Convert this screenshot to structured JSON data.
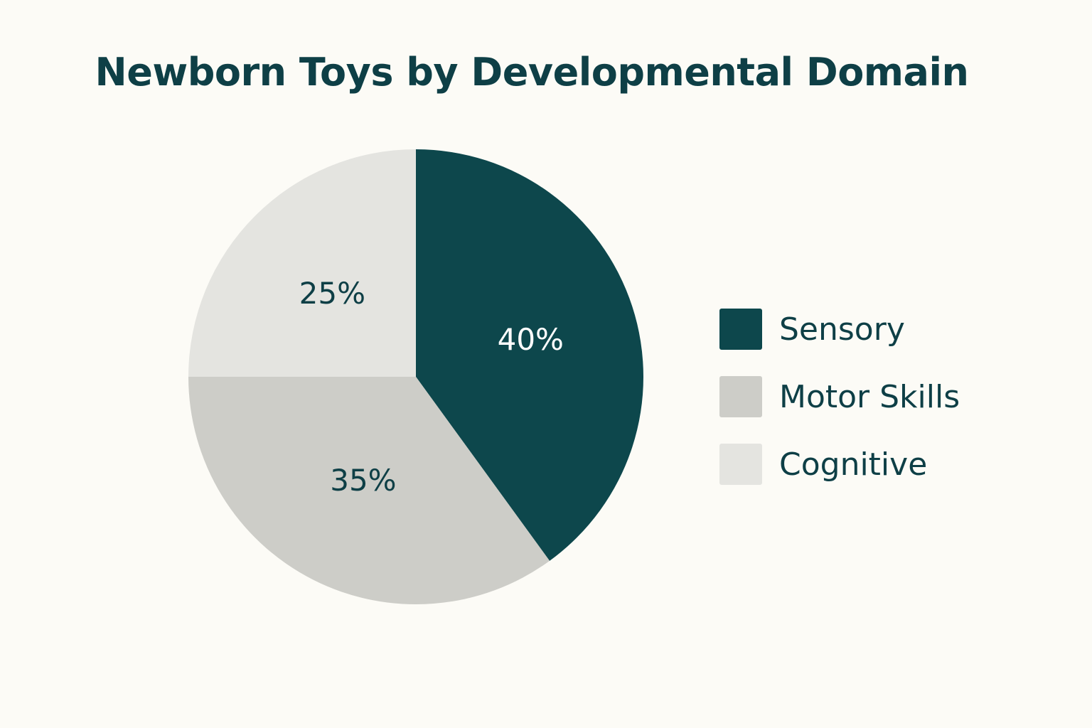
{
  "chart_data": {
    "type": "pie",
    "title": "Newborn Toys by Developmental Domain",
    "categories": [
      "Sensory",
      "Motor Skills",
      "Cognitive"
    ],
    "values": [
      40,
      35,
      25
    ],
    "labels": [
      "40%",
      "35%",
      "25%"
    ],
    "colors": [
      "#0d474c",
      "#cdcdc8",
      "#e4e4e0"
    ],
    "label_colors": [
      "#ffffff",
      "#0e3f46",
      "#0e3f46"
    ],
    "legend_position": "right"
  }
}
